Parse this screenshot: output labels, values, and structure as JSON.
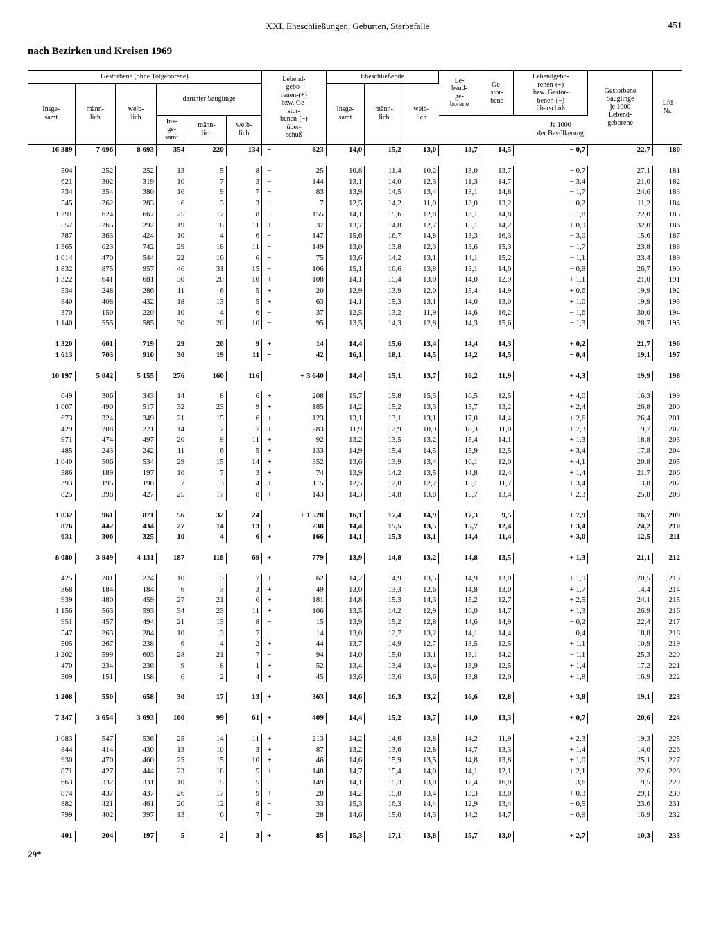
{
  "page": {
    "chapter": "XXI. Eheschließungen, Geburten, Sterbefälle",
    "number": "451",
    "title": "nach Bezirken und Kreisen 1969",
    "footer": "29*"
  },
  "headers": {
    "gestorbene_ohne": "Gestorbene (ohne Totgeborene)",
    "darunter": "darunter Säuglinge",
    "lebend_gebo": "Lebend-\ngebo-\nrenen-(+)\nbzw. Ge-\nstor-\nbenen-(−)\nüber-\nschuß",
    "ehe": "Eheschließende",
    "le_bend": "Le-\nbend-\nge-\nborene",
    "ge_stor": "Ge-\nstor-\nbene",
    "lebend_bzw": "Lebendgebo-\nrenen-(+)\nbzw. Gestor-\nbenen-(−)\nüberschuß",
    "gest_sauglinge": "Gestorbene\nSäuglinge\nje 1000\nLebend-\ngeborene",
    "lfd": "Lfd\nNr.",
    "insge": "Insge-\nsamt",
    "mann": "männ-\nlich",
    "weib": "weib-\nlich",
    "ins_ge_samt": "Ins-\nge-\nsamt",
    "je1000": "Je 1000\nder Bevölkerung"
  },
  "rows": [
    {
      "bold": true,
      "c": [
        "16 389",
        "7 696",
        "8 693",
        "354",
        "220",
        "134",
        "−",
        "823",
        "14,0",
        "15,2",
        "13,0",
        "13,7",
        "14,5",
        "− 0,7",
        "22,7",
        "180"
      ]
    },
    {
      "spacer": true
    },
    {
      "c": [
        "504",
        "252",
        "252",
        "13",
        "5",
        "8",
        "−",
        "25",
        "10,8",
        "11,4",
        "10,2",
        "13,0",
        "13,7",
        "− 0,7",
        "27,1",
        "181"
      ]
    },
    {
      "c": [
        "621",
        "302",
        "319",
        "10",
        "7",
        "3",
        "−",
        "144",
        "13,1",
        "14,0",
        "12,3",
        "11,3",
        "14,7",
        "− 3,4",
        "21,0",
        "182"
      ]
    },
    {
      "c": [
        "734",
        "354",
        "380",
        "16",
        "9",
        "7",
        "−",
        "83",
        "13,9",
        "14,5",
        "13,4",
        "13,1",
        "14,8",
        "− 1,7",
        "24,6",
        "183"
      ]
    },
    {
      "c": [
        "545",
        "262",
        "283",
        "6",
        "3",
        "3",
        "−",
        "7",
        "12,5",
        "14,2",
        "11,0",
        "13,0",
        "13,2",
        "− 0,2",
        "11,2",
        "184"
      ]
    },
    {
      "c": [
        "1 291",
        "624",
        "667",
        "25",
        "17",
        "8",
        "−",
        "155",
        "14,1",
        "15,6",
        "12,8",
        "13,1",
        "14,8",
        "− 1,8",
        "22,0",
        "185"
      ]
    },
    {
      "c": [
        "557",
        "265",
        "292",
        "19",
        "8",
        "11",
        "+",
        "37",
        "13,7",
        "14,8",
        "12,7",
        "15,1",
        "14,2",
        "+ 0,9",
        "32,0",
        "186"
      ]
    },
    {
      "c": [
        "787",
        "363",
        "424",
        "10",
        "4",
        "6",
        "−",
        "147",
        "15,6",
        "16,7",
        "14,8",
        "13,3",
        "16,3",
        "− 3,0",
        "15,6",
        "187"
      ]
    },
    {
      "c": [
        "1 365",
        "623",
        "742",
        "29",
        "18",
        "11",
        "−",
        "149",
        "13,0",
        "13,8",
        "12,3",
        "13,6",
        "15,3",
        "− 1,7",
        "23,8",
        "188"
      ]
    },
    {
      "c": [
        "1 014",
        "470",
        "544",
        "22",
        "16",
        "6",
        "−",
        "75",
        "13,6",
        "14,2",
        "13,1",
        "14,1",
        "15,2",
        "− 1,1",
        "23,4",
        "189"
      ]
    },
    {
      "c": [
        "1 832",
        "875",
        "957",
        "46",
        "31",
        "15",
        "−",
        "106",
        "15,1",
        "16,6",
        "13,8",
        "13,1",
        "14,0",
        "− 0,8",
        "26,7",
        "190"
      ]
    },
    {
      "c": [
        "1 322",
        "641",
        "681",
        "30",
        "20",
        "10",
        "+",
        "108",
        "14,1",
        "15,4",
        "13,0",
        "14,0",
        "12,9",
        "+ 1,1",
        "21,0",
        "191"
      ]
    },
    {
      "c": [
        "534",
        "248",
        "286",
        "11",
        "6",
        "5",
        "+",
        "20",
        "12,9",
        "13,9",
        "12,0",
        "15,4",
        "14,9",
        "+ 0,6",
        "19,9",
        "192"
      ]
    },
    {
      "c": [
        "840",
        "408",
        "432",
        "18",
        "13",
        "5",
        "+",
        "63",
        "14,1",
        "15,3",
        "13,1",
        "14,0",
        "13,0",
        "+ 1,0",
        "19,9",
        "193"
      ]
    },
    {
      "c": [
        "370",
        "150",
        "220",
        "10",
        "4",
        "6",
        "−",
        "37",
        "12,5",
        "13,2",
        "11,9",
        "14,6",
        "16,2",
        "− 1,6",
        "30,0",
        "194"
      ]
    },
    {
      "c": [
        "1 140",
        "555",
        "585",
        "30",
        "20",
        "10",
        "−",
        "95",
        "13,5",
        "14,3",
        "12,8",
        "14,3",
        "15,6",
        "− 1,3",
        "28,7",
        "195"
      ]
    },
    {
      "spacer": true
    },
    {
      "bold": true,
      "c": [
        "1 320",
        "601",
        "719",
        "29",
        "20",
        "9",
        "+",
        "14",
        "14,4",
        "15,6",
        "13,4",
        "14,4",
        "14,3",
        "+ 0,2",
        "21,7",
        "196"
      ]
    },
    {
      "bold": true,
      "c": [
        "1 613",
        "703",
        "910",
        "30",
        "19",
        "11",
        "−",
        "42",
        "16,1",
        "18,1",
        "14,5",
        "14,2",
        "14,5",
        "− 0,4",
        "19,1",
        "197"
      ]
    },
    {
      "spacer": true
    },
    {
      "bold": true,
      "c": [
        "10 197",
        "5 042",
        "5 155",
        "276",
        "160",
        "116",
        " ",
        "+ 3 640",
        "14,4",
        "15,1",
        "13,7",
        "16,2",
        "11,9",
        "+ 4,3",
        "19,9",
        "198"
      ]
    },
    {
      "spacer": true
    },
    {
      "c": [
        "649",
        "306",
        "343",
        "14",
        "8",
        "6",
        "+",
        "208",
        "15,7",
        "15,8",
        "15,5",
        "16,5",
        "12,5",
        "+ 4,0",
        "16,3",
        "199"
      ]
    },
    {
      "c": [
        "1 007",
        "490",
        "517",
        "32",
        "23",
        "9",
        "+",
        "185",
        "14,2",
        "15,2",
        "13,3",
        "15,7",
        "13,2",
        "+ 2,4",
        "26,8",
        "200"
      ]
    },
    {
      "c": [
        "673",
        "324",
        "349",
        "21",
        "15",
        "6",
        "+",
        "123",
        "13,1",
        "13,1",
        "13,1",
        "17,0",
        "14,4",
        "+ 2,6",
        "26,4",
        "201"
      ]
    },
    {
      "c": [
        "429",
        "208",
        "221",
        "14",
        "7",
        "7",
        "+",
        "283",
        "11,9",
        "12,9",
        "10,9",
        "18,3",
        "11,0",
        "+ 7,3",
        "19,7",
        "202"
      ]
    },
    {
      "c": [
        "971",
        "474",
        "497",
        "20",
        "9",
        "11",
        "+",
        "92",
        "13,2",
        "13,5",
        "13,2",
        "15,4",
        "14,1",
        "+ 1,3",
        "18,8",
        "203"
      ]
    },
    {
      "c": [
        "485",
        "243",
        "242",
        "11",
        "6",
        "5",
        "+",
        "133",
        "14,9",
        "15,4",
        "14,5",
        "15,9",
        "12,5",
        "+ 3,4",
        "17,8",
        "204"
      ]
    },
    {
      "c": [
        "1 040",
        "506",
        "534",
        "29",
        "15",
        "14",
        "+",
        "352",
        "13,6",
        "13,9",
        "13,4",
        "16,1",
        "12,0",
        "+ 4,1",
        "20,8",
        "205"
      ]
    },
    {
      "c": [
        "386",
        "189",
        "197",
        "10",
        "7",
        "3",
        "+",
        "74",
        "13,9",
        "14,2",
        "13,5",
        "14,8",
        "12,4",
        "+ 1,4",
        "21,7",
        "206"
      ]
    },
    {
      "c": [
        "393",
        "195",
        "198",
        "7",
        "3",
        "4",
        "+",
        "115",
        "12,5",
        "12,8",
        "12,2",
        "15,1",
        "11,7",
        "+ 3,4",
        "13,8",
        "207"
      ]
    },
    {
      "c": [
        "825",
        "398",
        "427",
        "25",
        "17",
        "8",
        "+",
        "143",
        "14,3",
        "14,8",
        "13,8",
        "15,7",
        "13,4",
        "+ 2,3",
        "25,8",
        "208"
      ]
    },
    {
      "spacer": true
    },
    {
      "bold": true,
      "c": [
        "1 832",
        "961",
        "871",
        "56",
        "32",
        "24",
        " ",
        "+ 1 528",
        "16,1",
        "17,4",
        "14,9",
        "17,3",
        "9,5",
        "+ 7,9",
        "16,7",
        "209"
      ]
    },
    {
      "bold": true,
      "c": [
        "876",
        "442",
        "434",
        "27",
        "14",
        "13",
        "+",
        "238",
        "14,4",
        "15,5",
        "13,5",
        "15,7",
        "12,4",
        "+ 3,4",
        "24,2",
        "210"
      ]
    },
    {
      "bold": true,
      "c": [
        "631",
        "306",
        "325",
        "10",
        "4",
        "6",
        "+",
        "166",
        "14,1",
        "15,3",
        "13,1",
        "14,4",
        "11,4",
        "+ 3,0",
        "12,5",
        "211"
      ]
    },
    {
      "spacer": true
    },
    {
      "bold": true,
      "c": [
        "8 080",
        "3 949",
        "4 131",
        "187",
        "118",
        "69",
        "+",
        "779",
        "13,9",
        "14,8",
        "13,2",
        "14,8",
        "13,5",
        "+ 1,3",
        "21,1",
        "212"
      ]
    },
    {
      "spacer": true
    },
    {
      "c": [
        "425",
        "201",
        "224",
        "10",
        "3",
        "7",
        "+",
        "62",
        "14,2",
        "14,9",
        "13,5",
        "14,9",
        "13,0",
        "+ 1,9",
        "20,5",
        "213"
      ]
    },
    {
      "c": [
        "368",
        "184",
        "184",
        "6",
        "3",
        "3",
        "+",
        "49",
        "13,0",
        "13,3",
        "12,6",
        "14,8",
        "13,0",
        "+ 1,7",
        "14,4",
        "214"
      ]
    },
    {
      "c": [
        "939",
        "480",
        "459",
        "27",
        "21",
        "6",
        "+",
        "181",
        "14,8",
        "15,3",
        "14,3",
        "15,2",
        "12,7",
        "+ 2,5",
        "24,1",
        "215"
      ]
    },
    {
      "c": [
        "1 156",
        "563",
        "593",
        "34",
        "23",
        "11",
        "+",
        "106",
        "13,5",
        "14,2",
        "12,9",
        "16,0",
        "14,7",
        "+ 1,3",
        "26,9",
        "216"
      ]
    },
    {
      "c": [
        "951",
        "457",
        "494",
        "21",
        "13",
        "8",
        "−",
        "15",
        "13,9",
        "15,2",
        "12,8",
        "14,6",
        "14,9",
        "− 0,2",
        "22,4",
        "217"
      ]
    },
    {
      "c": [
        "547",
        "263",
        "284",
        "10",
        "3",
        "7",
        "−",
        "14",
        "13,0",
        "12,7",
        "13,2",
        "14,1",
        "14,4",
        "− 0,4",
        "18,8",
        "218"
      ]
    },
    {
      "c": [
        "505",
        "267",
        "238",
        "6",
        "4",
        "2",
        "+",
        "44",
        "13,7",
        "14,9",
        "12,7",
        "13,5",
        "12,5",
        "+ 1,1",
        "10,9",
        "219"
      ]
    },
    {
      "c": [
        "1 202",
        "599",
        "603",
        "28",
        "21",
        "7",
        "−",
        "94",
        "14,0",
        "15,0",
        "13,1",
        "13,1",
        "14,2",
        "− 1,1",
        "25,3",
        "220"
      ]
    },
    {
      "c": [
        "470",
        "234",
        "236",
        "9",
        "8",
        "1",
        "+",
        "52",
        "13,4",
        "13,4",
        "13,4",
        "13,9",
        "12,5",
        "+ 1,4",
        "17,2",
        "221"
      ]
    },
    {
      "c": [
        "309",
        "151",
        "158",
        "6",
        "2",
        "4",
        "+",
        "45",
        "13,6",
        "13,6",
        "13,6",
        "13,8",
        "12,0",
        "+ 1,8",
        "16,9",
        "222"
      ]
    },
    {
      "spacer": true
    },
    {
      "bold": true,
      "c": [
        "1 208",
        "550",
        "658",
        "30",
        "17",
        "13",
        "+",
        "363",
        "14,6",
        "16,3",
        "13,2",
        "16,6",
        "12,8",
        "+ 3,8",
        "19,1",
        "223"
      ]
    },
    {
      "spacer": true
    },
    {
      "bold": true,
      "c": [
        "7 347",
        "3 654",
        "3 693",
        "160",
        "99",
        "61",
        "+",
        "409",
        "14,4",
        "15,2",
        "13,7",
        "14,0",
        "13,3",
        "+ 0,7",
        "20,6",
        "224"
      ]
    },
    {
      "spacer": true
    },
    {
      "c": [
        "1 083",
        "547",
        "536",
        "25",
        "14",
        "11",
        "+",
        "213",
        "14,2",
        "14,6",
        "13,8",
        "14,2",
        "11,9",
        "+ 2,3",
        "19,3",
        "225"
      ]
    },
    {
      "c": [
        "844",
        "414",
        "430",
        "13",
        "10",
        "3",
        "+",
        "87",
        "13,2",
        "13,6",
        "12,8",
        "14,7",
        "13,3",
        "+ 1,4",
        "14,0",
        "226"
      ]
    },
    {
      "c": [
        "930",
        "470",
        "460",
        "25",
        "15",
        "10",
        "+",
        "46",
        "14,6",
        "15,9",
        "13,5",
        "14,8",
        "13,8",
        "+ 1,0",
        "25,1",
        "227"
      ]
    },
    {
      "c": [
        "871",
        "427",
        "444",
        "23",
        "18",
        "5",
        "+",
        "148",
        "14,7",
        "15,4",
        "14,0",
        "14,1",
        "12,1",
        "+ 2,1",
        "22,6",
        "228"
      ]
    },
    {
      "c": [
        "663",
        "332",
        "331",
        "10",
        "5",
        "5",
        "−",
        "149",
        "14,1",
        "15,3",
        "13,0",
        "12,4",
        "16,0",
        "− 3,6",
        "19,5",
        "229"
      ]
    },
    {
      "c": [
        "874",
        "437",
        "437",
        "26",
        "17",
        "9",
        "+",
        "20",
        "14,2",
        "15,0",
        "13,4",
        "13,3",
        "13,0",
        "+ 0,3",
        "29,1",
        "230"
      ]
    },
    {
      "c": [
        "882",
        "421",
        "461",
        "20",
        "12",
        "8",
        "−",
        "33",
        "15,3",
        "16,3",
        "14,4",
        "12,9",
        "13,4",
        "− 0,5",
        "23,6",
        "231"
      ]
    },
    {
      "c": [
        "799",
        "402",
        "397",
        "13",
        "6",
        "7",
        "−",
        "28",
        "14,6",
        "15,0",
        "14,3",
        "14,2",
        "14,7",
        "− 0,9",
        "16,9",
        "232"
      ]
    },
    {
      "spacer": true
    },
    {
      "bold": true,
      "c": [
        "401",
        "204",
        "197",
        "5",
        "2",
        "3",
        "+",
        "85",
        "15,3",
        "17,1",
        "13,8",
        "15,7",
        "13,0",
        "+ 2,7",
        "10,3",
        "233"
      ]
    }
  ]
}
